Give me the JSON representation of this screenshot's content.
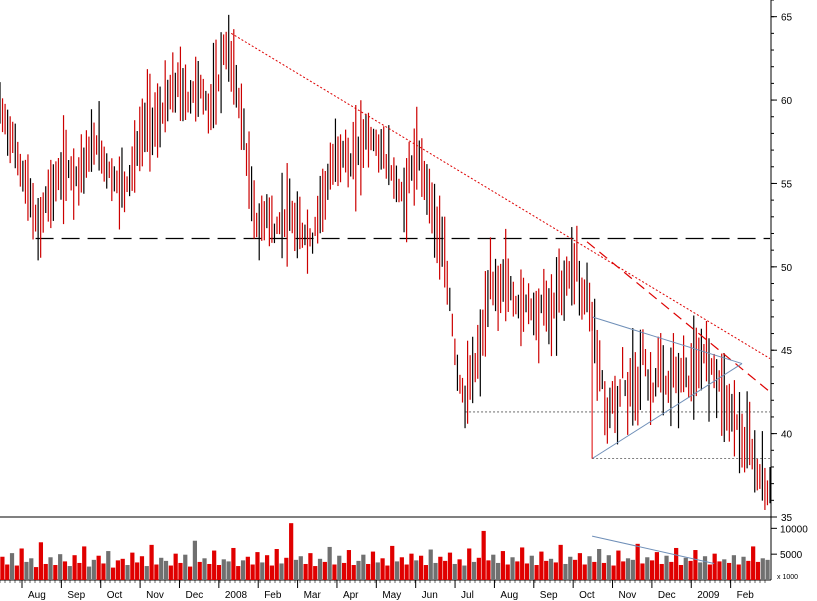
{
  "chart_data": {
    "type": "bar",
    "title": "",
    "price_axis": {
      "min": 35,
      "max": 66,
      "ticks": [
        35,
        40,
        45,
        50,
        55,
        60,
        65
      ]
    },
    "volume_axis": {
      "max": 12000,
      "ticks": [
        5000,
        10000
      ],
      "unit_label": "x 1000"
    },
    "x_labels": [
      "Aug",
      "Sep",
      "Oct",
      "Nov",
      "Dec",
      "2008",
      "Feb",
      "Mar",
      "Apr",
      "May",
      "Jun",
      "Jul",
      "Aug",
      "Sep",
      "Oct",
      "Nov",
      "Dec",
      "2009",
      "Feb"
    ],
    "price_path": [
      [
        0,
        59.5
      ],
      [
        4,
        58
      ],
      [
        8,
        56
      ],
      [
        12,
        54
      ],
      [
        15,
        52
      ],
      [
        18,
        54
      ],
      [
        22,
        55
      ],
      [
        26,
        56
      ],
      [
        30,
        55.5
      ],
      [
        34,
        56.5
      ],
      [
        38,
        57.5
      ],
      [
        42,
        56
      ],
      [
        46,
        55
      ],
      [
        50,
        55
      ],
      [
        54,
        57
      ],
      [
        58,
        59
      ],
      [
        62,
        58.5
      ],
      [
        66,
        60
      ],
      [
        70,
        61
      ],
      [
        74,
        60
      ],
      [
        78,
        61
      ],
      [
        82,
        59.5
      ],
      [
        86,
        61
      ],
      [
        88,
        63
      ],
      [
        91,
        62.5
      ],
      [
        94,
        60
      ],
      [
        96,
        58
      ],
      [
        99,
        54
      ],
      [
        102,
        52
      ],
      [
        105,
        53.5
      ],
      [
        108,
        52
      ],
      [
        111,
        53
      ],
      [
        114,
        53
      ],
      [
        117,
        52
      ],
      [
        120,
        52
      ],
      [
        123,
        51.5
      ],
      [
        126,
        54
      ],
      [
        129,
        55
      ],
      [
        132,
        56.5
      ],
      [
        135,
        57
      ],
      [
        138,
        56
      ],
      [
        141,
        57
      ],
      [
        144,
        58
      ],
      [
        147,
        57.5
      ],
      [
        150,
        57
      ],
      [
        153,
        56
      ],
      [
        156,
        55
      ],
      [
        159,
        54
      ],
      [
        162,
        56
      ],
      [
        165,
        56.5
      ],
      [
        168,
        55
      ],
      [
        171,
        53
      ],
      [
        174,
        51
      ],
      [
        177,
        48
      ],
      [
        179,
        45
      ],
      [
        181,
        43
      ],
      [
        183,
        42
      ],
      [
        185,
        43
      ],
      [
        187,
        44
      ],
      [
        189,
        45
      ],
      [
        191,
        47
      ],
      [
        193,
        49
      ],
      [
        196,
        48.5
      ],
      [
        199,
        49.5
      ],
      [
        202,
        48
      ],
      [
        205,
        47.5
      ],
      [
        208,
        48
      ],
      [
        211,
        47
      ],
      [
        214,
        48
      ],
      [
        217,
        47
      ],
      [
        220,
        48.5
      ],
      [
        222,
        49
      ],
      [
        225,
        50
      ],
      [
        227,
        50.5
      ],
      [
        229,
        48
      ],
      [
        231,
        48.5
      ],
      [
        233,
        47
      ],
      [
        235,
        45
      ],
      [
        237,
        43
      ],
      [
        239,
        41
      ],
      [
        241,
        42
      ],
      [
        243,
        41
      ],
      [
        245,
        44
      ],
      [
        247,
        41.5
      ],
      [
        249,
        44
      ],
      [
        251,
        43
      ],
      [
        253,
        45
      ],
      [
        255,
        43
      ],
      [
        257,
        42.5
      ],
      [
        259,
        44
      ],
      [
        261,
        43
      ],
      [
        263,
        42.5
      ],
      [
        265,
        44
      ],
      [
        267,
        43
      ],
      [
        269,
        44
      ],
      [
        271,
        43
      ],
      [
        273,
        44
      ],
      [
        275,
        43.5
      ],
      [
        277,
        45
      ],
      [
        279,
        44
      ],
      [
        281,
        44
      ],
      [
        283,
        43
      ],
      [
        285,
        42.5
      ],
      [
        287,
        41
      ],
      [
        289,
        41.5
      ],
      [
        291,
        40
      ],
      [
        293,
        39
      ],
      [
        295,
        39.5
      ],
      [
        297,
        38
      ],
      [
        299,
        37.5
      ],
      [
        301,
        37
      ],
      [
        303,
        36.5
      ]
    ],
    "volume_bars": [
      4500,
      3000,
      5200,
      2800,
      6100,
      3500,
      4200,
      2500,
      7300,
      3100,
      4400,
      2900,
      5000,
      3600,
      2700,
      4800,
      3300,
      6500,
      2600,
      3900,
      4700,
      3200,
      5600,
      2400,
      3800,
      4100,
      2900,
      5300,
      3400,
      4600,
      2700,
      6800,
      3000,
      4300,
      3700,
      2800,
      5100,
      3300,
      4900,
      2600,
      7600,
      3500,
      4200,
      3100,
      5700,
      2900,
      4000,
      3600,
      6200,
      2700,
      3800,
      4500,
      3000,
      5400,
      3400,
      4800,
      2800,
      6000,
      3200,
      4300,
      11000,
      3900,
      4600,
      3100,
      5200,
      2700,
      4100,
      3500,
      6400,
      3000,
      4700,
      3300,
      5800,
      2900,
      3700,
      4900,
      3100,
      5500,
      3400,
      4200,
      2800,
      6600,
      3600,
      4400,
      3000,
      5100,
      3800,
      4700,
      2900,
      5900,
      3300,
      4500,
      3700,
      5300,
      3100,
      4000,
      2800,
      6100,
      3500,
      4300,
      9500,
      3800,
      4900,
      3300,
      5600,
      3000,
      4400,
      3600,
      6300,
      3200,
      4700,
      2900,
      5500,
      3700,
      4100,
      3400,
      6800,
      3100,
      4500,
      3900,
      5200,
      3000,
      4600,
      3500,
      6000,
      3300,
      4800,
      2800,
      5700,
      3600,
      4200,
      3900,
      7000,
      3200,
      4400,
      3800,
      5400,
      3100,
      4700,
      3500,
      6200,
      2900,
      4300,
      3700,
      5800,
      3400,
      4600,
      3000,
      5100,
      3600,
      4000,
      3300,
      4800,
      3000,
      4500,
      3700,
      6500,
      3500,
      4200,
      3900
    ],
    "volume_colors_mode": "alternating red/gray",
    "annotations": {
      "support_long_dashed": 51.7,
      "support_short_dashed_1": 41.3,
      "support_short_dashed_2": 38.5,
      "downtrend_start": {
        "x": 91,
        "y": 64
      },
      "downtrend_end": {
        "x": 303,
        "y": 44.5
      },
      "red_dashed_start": {
        "x": 231,
        "y": 51.5
      },
      "red_dashed_end": {
        "x": 303,
        "y": 42.5
      },
      "triangle": {
        "apex_x": 292,
        "apex_y": 44.2,
        "top_left": [
          233,
          47
        ],
        "bottom_left": [
          233,
          38.5
        ]
      }
    },
    "grid": false,
    "legend": "none"
  },
  "labels": {
    "volume_unit": "x 1000"
  }
}
